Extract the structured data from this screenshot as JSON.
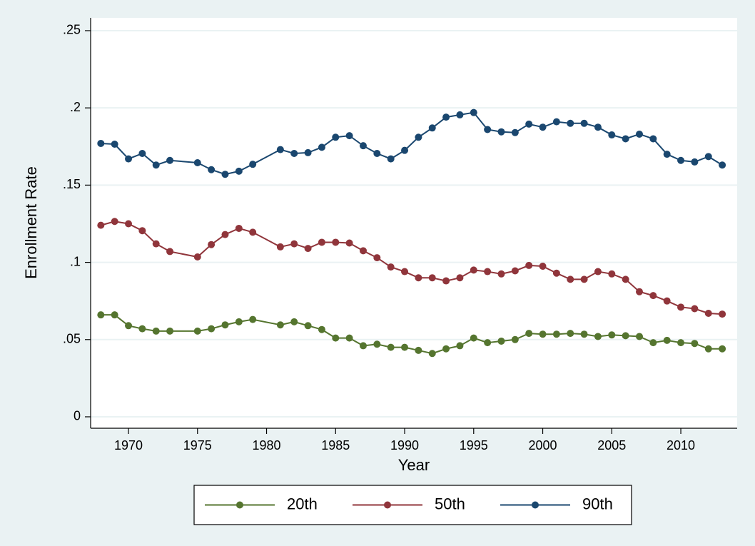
{
  "chart_data": {
    "type": "line",
    "x_label": "Year",
    "y_label": "Enrollment Rate",
    "x": [
      1968,
      1969,
      1970,
      1971,
      1972,
      1973,
      1975,
      1976,
      1977,
      1978,
      1979,
      1981,
      1982,
      1983,
      1984,
      1985,
      1986,
      1987,
      1988,
      1989,
      1990,
      1991,
      1992,
      1993,
      1994,
      1995,
      1996,
      1997,
      1998,
      1999,
      2000,
      2001,
      2002,
      2003,
      2004,
      2005,
      2006,
      2007,
      2008,
      2009,
      2010,
      2011,
      2012,
      2013
    ],
    "series": [
      {
        "name": "20th",
        "color": "#55752f",
        "values": [
          0.066,
          0.066,
          0.059,
          0.057,
          0.0555,
          0.0555,
          0.0555,
          0.057,
          0.0595,
          0.0615,
          0.063,
          0.0595,
          0.0615,
          0.059,
          0.0565,
          0.051,
          0.051,
          0.046,
          0.047,
          0.045,
          0.045,
          0.043,
          0.041,
          0.044,
          0.046,
          0.051,
          0.048,
          0.049,
          0.05,
          0.054,
          0.0535,
          0.0535,
          0.054,
          0.0535,
          0.052,
          0.053,
          0.0525,
          0.052,
          0.048,
          0.0495,
          0.048,
          0.0475,
          0.044,
          0.044
        ]
      },
      {
        "name": "50th",
        "color": "#90353b",
        "values": [
          0.124,
          0.1265,
          0.125,
          0.1205,
          0.112,
          0.107,
          0.1035,
          0.1115,
          0.118,
          0.122,
          0.1195,
          0.11,
          0.112,
          0.109,
          0.113,
          0.113,
          0.1125,
          0.1075,
          0.103,
          0.097,
          0.094,
          0.09,
          0.09,
          0.088,
          0.09,
          0.095,
          0.094,
          0.0925,
          0.0945,
          0.098,
          0.0975,
          0.093,
          0.089,
          0.089,
          0.094,
          0.0925,
          0.089,
          0.081,
          0.0785,
          0.075,
          0.071,
          0.07,
          0.067,
          0.0665
        ]
      },
      {
        "name": "90th",
        "color": "#1a476f",
        "values": [
          0.177,
          0.1765,
          0.167,
          0.1705,
          0.163,
          0.166,
          0.1645,
          0.16,
          0.157,
          0.159,
          0.1635,
          0.173,
          0.1705,
          0.171,
          0.1745,
          0.181,
          0.182,
          0.1755,
          0.1705,
          0.167,
          0.1725,
          0.181,
          0.187,
          0.194,
          0.1955,
          0.197,
          0.186,
          0.1845,
          0.184,
          0.1895,
          0.1875,
          0.191,
          0.19,
          0.19,
          0.1875,
          0.1825,
          0.18,
          0.183,
          0.18,
          0.17,
          0.166,
          0.165,
          0.1685,
          0.163
        ]
      }
    ],
    "xlim": [
      1967.26,
      2014.08
    ],
    "xticks": [
      1970,
      1975,
      1980,
      1985,
      1990,
      1995,
      2000,
      2005,
      2010
    ],
    "ylim": [
      -0.0074,
      0.2583
    ],
    "yticks": [
      0,
      {
        "value": 0.05,
        "label": ".05"
      },
      {
        "value": 0.1,
        "label": ".1"
      },
      {
        "value": 0.15,
        "label": ".15"
      },
      {
        "value": 0.2,
        "label": ".2"
      },
      {
        "value": 0.25,
        "label": ".25"
      }
    ],
    "grid": true,
    "legend": "bottom"
  }
}
